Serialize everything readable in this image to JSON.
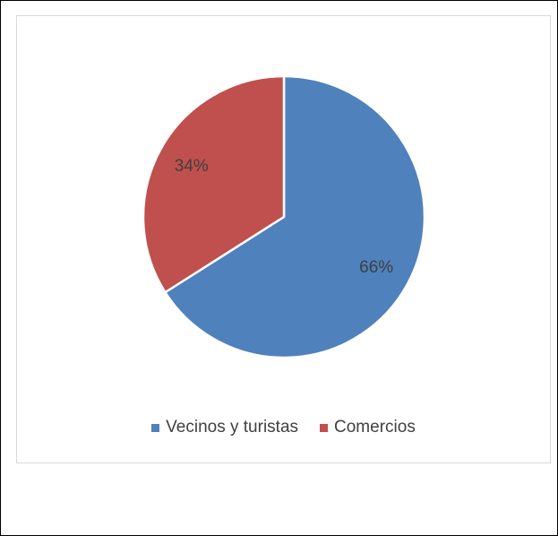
{
  "chart_data": {
    "type": "pie",
    "categories": [
      "Vecinos y turistas",
      "Comercios"
    ],
    "values": [
      66,
      34
    ],
    "data_labels": [
      "66%",
      "34%"
    ],
    "colors": [
      "#4f81bd",
      "#c0504d"
    ],
    "legend_position": "bottom",
    "start_angle_deg": 0,
    "direction": "clockwise"
  }
}
